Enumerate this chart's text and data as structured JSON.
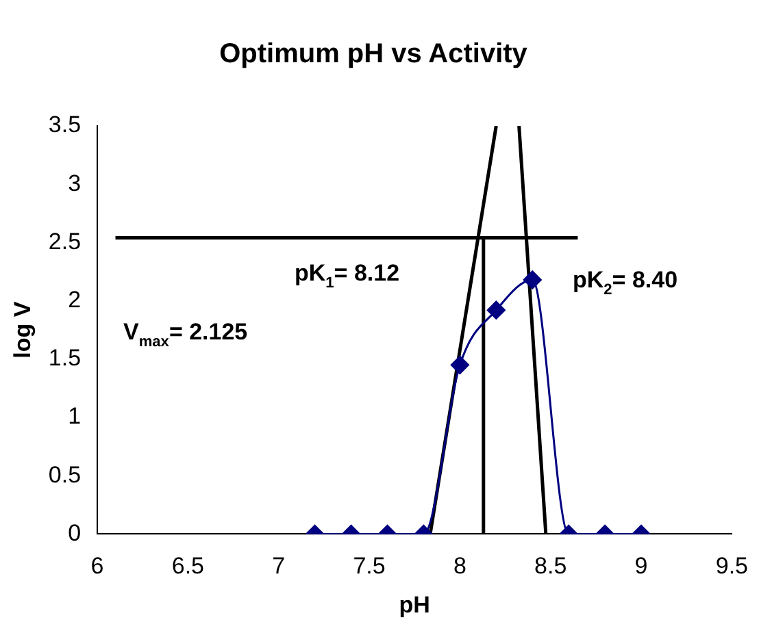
{
  "chart_data": {
    "type": "scatter",
    "title": "Optimum pH vs Activity",
    "xlabel": "pH",
    "ylabel": "log V",
    "xlim": [
      6,
      9.5
    ],
    "xticks": [
      6,
      6.5,
      7,
      7.5,
      8,
      8.5,
      9,
      9.5
    ],
    "ylim": [
      0,
      3.5
    ],
    "yticks": [
      0,
      0.5,
      1,
      1.5,
      2,
      2.5,
      3,
      3.5
    ],
    "grid": false,
    "legend": false,
    "marker": "diamond",
    "series": [
      {
        "type": "line",
        "color": "#000080",
        "x": [
          7.2,
          7.4,
          7.6,
          7.8,
          8.0,
          8.2,
          8.4,
          8.6,
          8.8,
          9.0
        ],
        "values": [
          0,
          0,
          0,
          0,
          1.45,
          1.92,
          2.18,
          0,
          0,
          0
        ]
      },
      {
        "type": "line",
        "marker": "none",
        "color": "#000000",
        "x": [
          7.836,
          8.2
        ],
        "values": [
          0,
          3.5
        ]
      },
      {
        "type": "line",
        "marker": "none",
        "color": "#000000",
        "x": [
          8.326,
          8.474
        ],
        "values": [
          3.5,
          0
        ]
      },
      {
        "type": "line",
        "marker": "none",
        "color": "#000000",
        "x": [
          6.1,
          8.65
        ],
        "values": [
          2.54,
          2.54
        ]
      },
      {
        "type": "line",
        "marker": "none",
        "color": "#000000",
        "x": [
          8.13,
          8.13
        ],
        "values": [
          2.54,
          0
        ]
      }
    ],
    "annotations": [
      "pK$_{1}$= 8.12",
      "pK$_{2}$= 8.40",
      "V$_{max}$= 2.125"
    ]
  }
}
